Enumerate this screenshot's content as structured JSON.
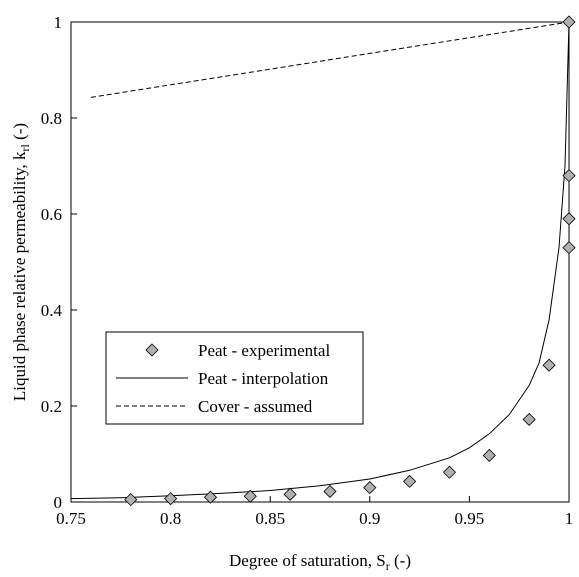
{
  "chart_data": {
    "type": "scatter",
    "xlabel": "Degree of saturation, S_r (-)",
    "xlabel_main": "Degree of saturation, S",
    "xlabel_sub": "r",
    "xlabel_tail": " (-)",
    "ylabel": "Liquid phase relative permeability, k_rl (-)",
    "ylabel_main": "Liquid phase relative permeability, k",
    "ylabel_sub": "rl",
    "ylabel_tail": " (-)",
    "xlim": [
      0.75,
      1.0
    ],
    "ylim": [
      0,
      1
    ],
    "xticks": [
      0.75,
      0.8,
      0.85,
      0.9,
      0.95,
      1
    ],
    "xtick_labels": [
      "0.75",
      "0.8",
      "0.85",
      "0.9",
      "0.95",
      "1"
    ],
    "yticks": [
      0,
      0.2,
      0.4,
      0.6,
      0.8,
      1
    ],
    "ytick_labels": [
      "0",
      "0.2",
      "0.4",
      "0.6",
      "0.8",
      "1"
    ],
    "grid": false,
    "legend_position": "center-left",
    "series": [
      {
        "name": "Peat - experimental",
        "style": "diamond-markers",
        "marker_fill": "#b0b0b0",
        "x": [
          0.78,
          0.8,
          0.82,
          0.84,
          0.86,
          0.88,
          0.9,
          0.92,
          0.94,
          0.96,
          0.98,
          0.99,
          1.0,
          1.0,
          1.0,
          1.0
        ],
        "y": [
          0.005,
          0.007,
          0.01,
          0.012,
          0.016,
          0.022,
          0.03,
          0.043,
          0.062,
          0.097,
          0.172,
          0.285,
          0.53,
          0.59,
          0.68,
          1.0
        ]
      },
      {
        "name": "Peat - interpolation",
        "style": "solid-line",
        "x": [
          0.75,
          0.775,
          0.8,
          0.825,
          0.85,
          0.875,
          0.9,
          0.92,
          0.94,
          0.95,
          0.96,
          0.97,
          0.98,
          0.985,
          0.99,
          0.995,
          0.998,
          1.0
        ],
        "y": [
          0.007,
          0.009,
          0.013,
          0.018,
          0.024,
          0.034,
          0.048,
          0.066,
          0.092,
          0.113,
          0.142,
          0.182,
          0.243,
          0.29,
          0.38,
          0.53,
          0.7,
          1.0
        ]
      },
      {
        "name": "Cover - assumed",
        "style": "dashed-line",
        "x": [
          0.76,
          1.0
        ],
        "y": [
          0.843,
          1.0
        ]
      }
    ]
  }
}
